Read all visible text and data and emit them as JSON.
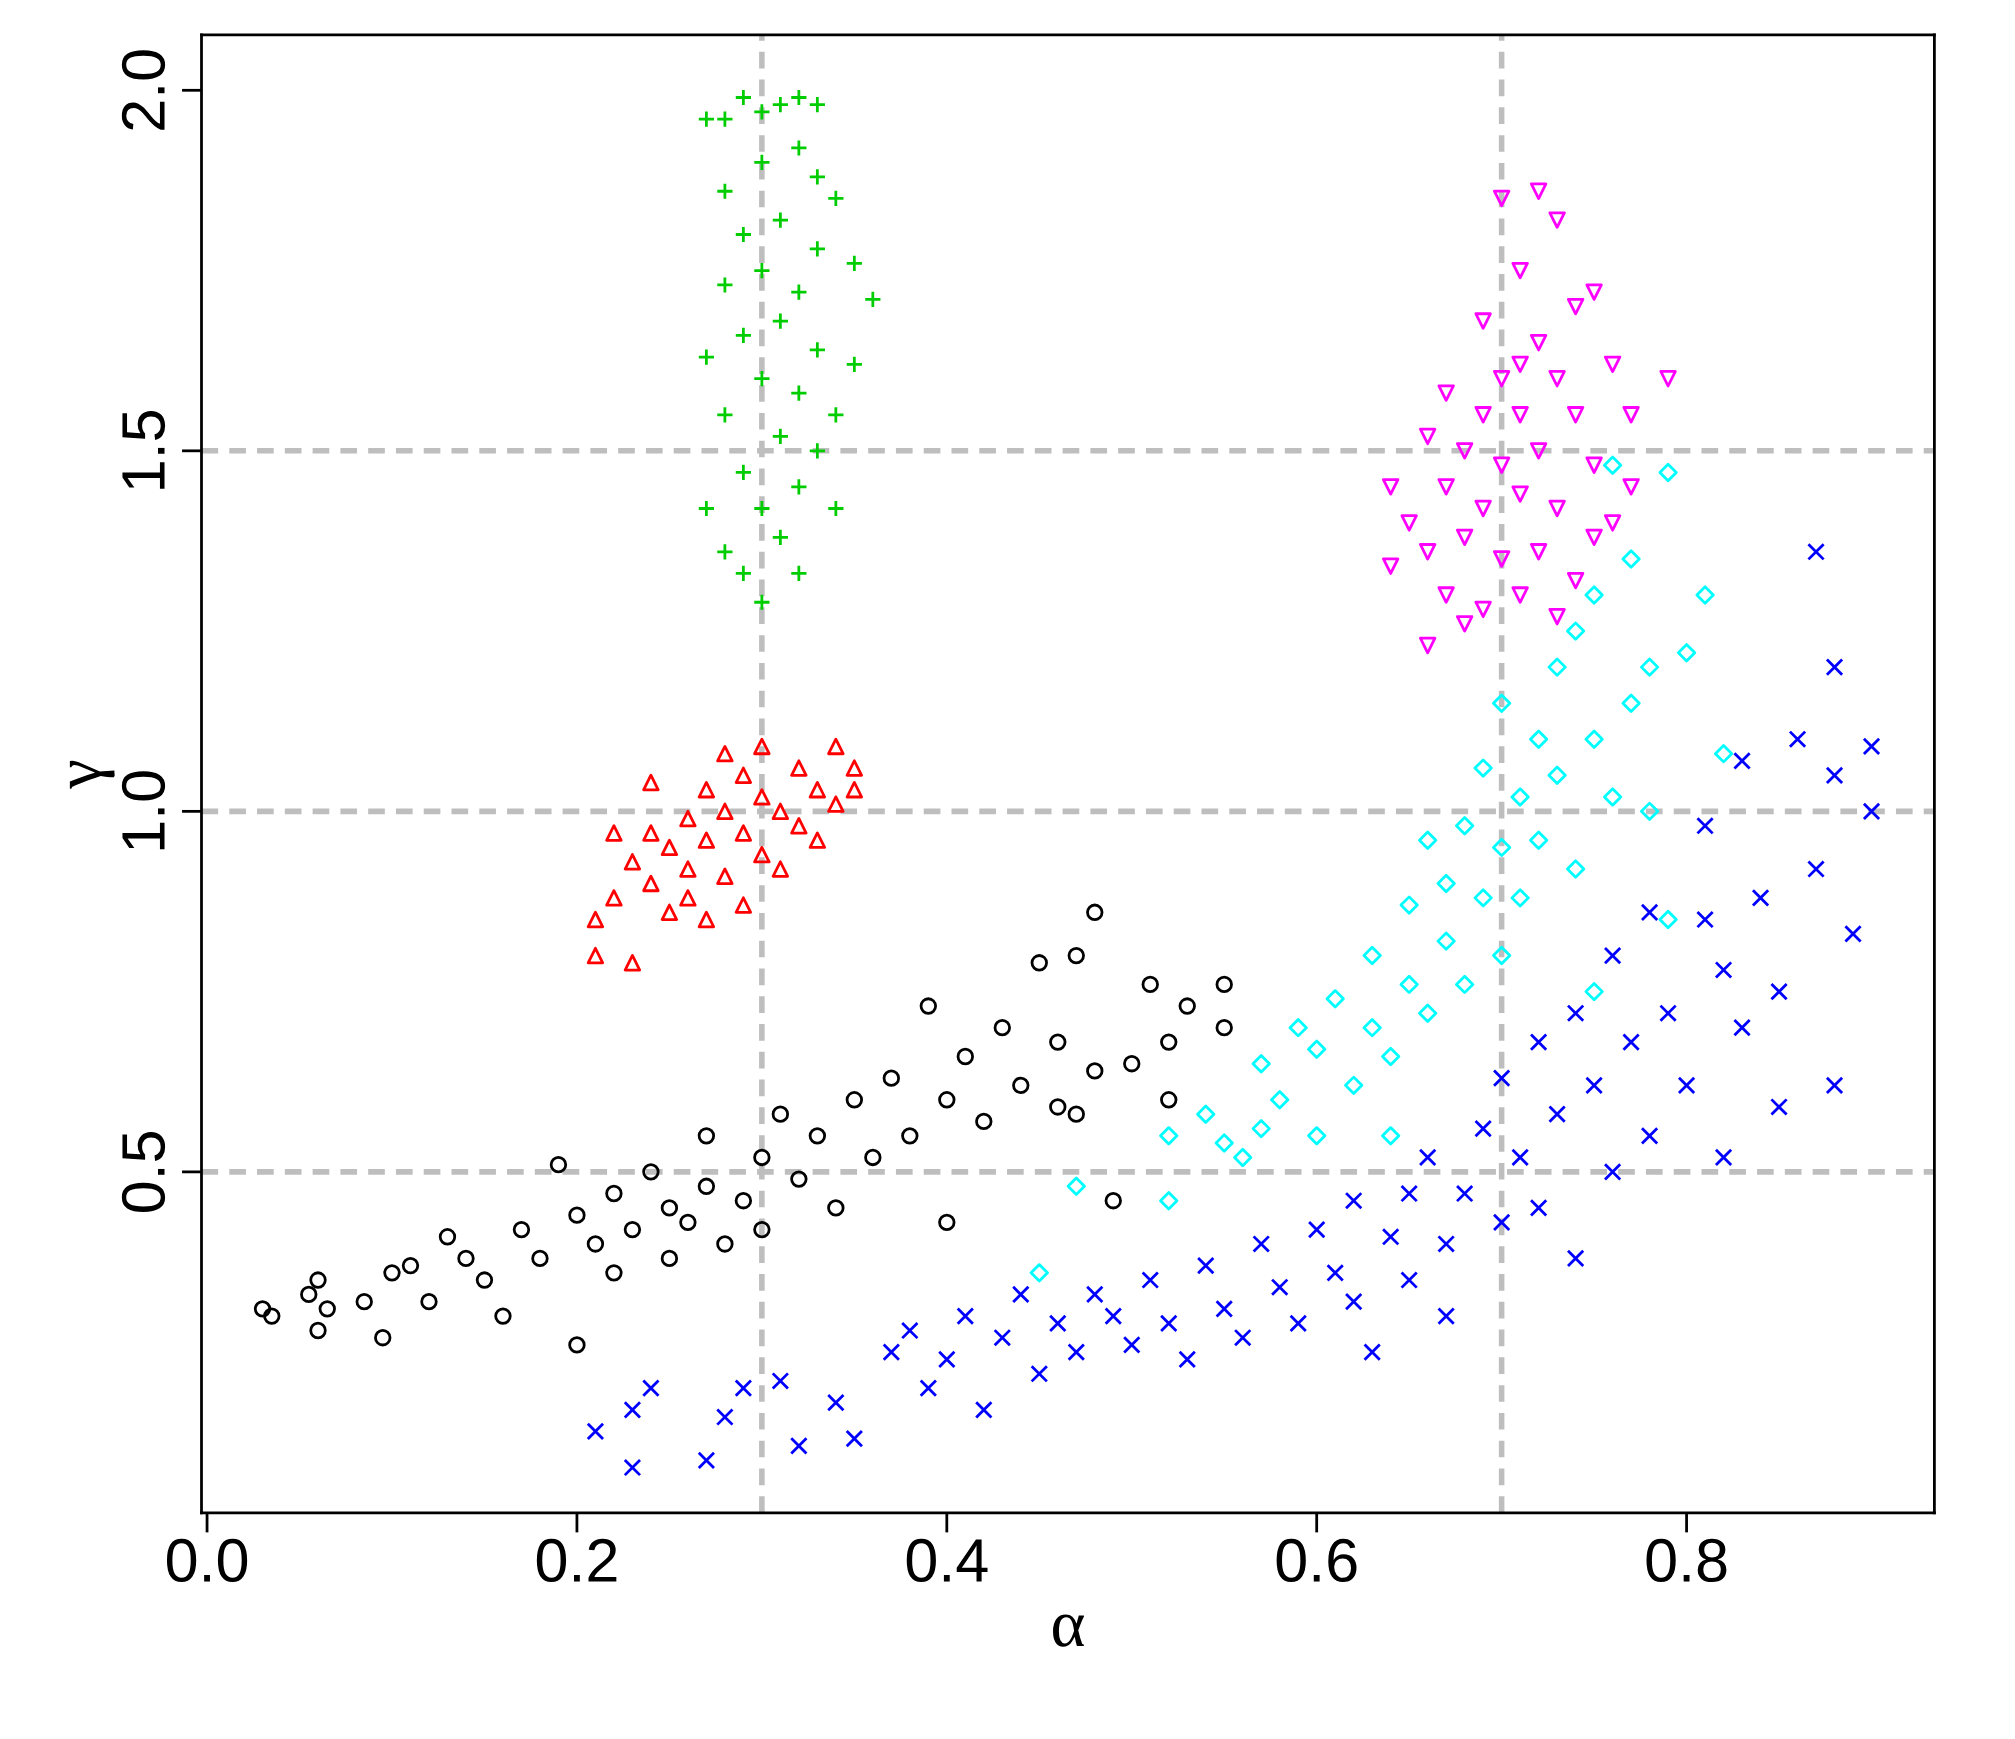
{
  "chart_data": {
    "type": "scatter",
    "xlabel": "α",
    "ylabel": "γ",
    "xlim": [
      -0.003,
      0.934
    ],
    "ylim": [
      0.027,
      2.077
    ],
    "xticks": [
      {
        "value": 0,
        "label": "0.0"
      },
      0.2,
      0.4,
      0.6,
      0.8
    ],
    "yticks": [
      0.5,
      {
        "value": 1,
        "label": "1.0"
      },
      1.5,
      {
        "value": 2,
        "label": "2.0"
      }
    ],
    "ref_lines": [
      {
        "axis": "x",
        "value": 0.3,
        "color": "#bebebe",
        "line_style": "dashed"
      },
      {
        "axis": "x",
        "value": 0.7,
        "color": "#bebebe",
        "line_style": "dashed"
      },
      {
        "axis": "y",
        "value": 0.5,
        "color": "#bebebe",
        "line_style": "dashed"
      },
      {
        "axis": "y",
        "value": 1.0,
        "color": "#bebebe",
        "line_style": "dashed"
      },
      {
        "axis": "y",
        "value": 1.5,
        "color": "#bebebe",
        "line_style": "dashed"
      }
    ],
    "series": [
      {
        "color": "#000000",
        "marker": "circle",
        "x": [
          0.03,
          0.035,
          0.055,
          0.06,
          0.06,
          0.065,
          0.085,
          0.095,
          0.1,
          0.11,
          0.12,
          0.13,
          0.14,
          0.15,
          0.16,
          0.17,
          0.18,
          0.19,
          0.2,
          0.21,
          0.22,
          0.22,
          0.23,
          0.24,
          0.25,
          0.25,
          0.26,
          0.27,
          0.27,
          0.28,
          0.29,
          0.3,
          0.3,
          0.31,
          0.32,
          0.33,
          0.34,
          0.35,
          0.36,
          0.37,
          0.38,
          0.39,
          0.4,
          0.41,
          0.42,
          0.43,
          0.44,
          0.45,
          0.46,
          0.46,
          0.47,
          0.48,
          0.48,
          0.49,
          0.5,
          0.51,
          0.52,
          0.52,
          0.53,
          0.55,
          0.55,
          0.4,
          0.47,
          0.2
        ],
        "values": [
          0.31,
          0.3,
          0.33,
          0.35,
          0.28,
          0.31,
          0.32,
          0.27,
          0.36,
          0.37,
          0.32,
          0.41,
          0.38,
          0.35,
          0.3,
          0.42,
          0.38,
          0.51,
          0.44,
          0.4,
          0.47,
          0.36,
          0.42,
          0.5,
          0.45,
          0.38,
          0.43,
          0.55,
          0.48,
          0.4,
          0.46,
          0.52,
          0.42,
          0.58,
          0.49,
          0.55,
          0.45,
          0.6,
          0.52,
          0.63,
          0.55,
          0.73,
          0.6,
          0.66,
          0.57,
          0.7,
          0.62,
          0.79,
          0.68,
          0.59,
          0.8,
          0.86,
          0.64,
          0.46,
          0.65,
          0.76,
          0.6,
          0.68,
          0.73,
          0.76,
          0.7,
          0.43,
          0.58,
          0.26
        ]
      },
      {
        "color": "#ff0000",
        "marker": "triangle",
        "x": [
          0.21,
          0.21,
          0.22,
          0.23,
          0.23,
          0.22,
          0.24,
          0.24,
          0.25,
          0.25,
          0.26,
          0.26,
          0.27,
          0.27,
          0.27,
          0.28,
          0.28,
          0.28,
          0.29,
          0.29,
          0.3,
          0.3,
          0.3,
          0.31,
          0.31,
          0.32,
          0.32,
          0.33,
          0.33,
          0.34,
          0.34,
          0.35,
          0.35,
          0.26,
          0.24,
          0.29
        ],
        "values": [
          0.85,
          0.8,
          0.88,
          0.79,
          0.93,
          0.97,
          1.04,
          0.9,
          0.95,
          0.86,
          0.99,
          0.92,
          1.03,
          0.96,
          0.85,
          1.08,
          1.0,
          0.91,
          0.97,
          0.87,
          1.09,
          1.02,
          0.94,
          1.0,
          0.92,
          1.06,
          0.98,
          1.03,
          0.96,
          1.09,
          1.01,
          1.06,
          1.03,
          0.88,
          0.97,
          1.05
        ]
      },
      {
        "color": "#00cd00",
        "marker": "cross",
        "x": [
          0.28,
          0.29,
          0.3,
          0.31,
          0.32,
          0.33,
          0.3,
          0.32,
          0.28,
          0.33,
          0.34,
          0.29,
          0.31,
          0.33,
          0.28,
          0.3,
          0.32,
          0.35,
          0.36,
          0.29,
          0.31,
          0.33,
          0.27,
          0.3,
          0.32,
          0.28,
          0.31,
          0.33,
          0.29,
          0.32,
          0.3,
          0.27,
          0.34,
          0.31,
          0.28,
          0.29,
          0.3,
          0.32,
          0.27,
          0.34,
          0.35
        ],
        "values": [
          1.96,
          1.99,
          1.97,
          1.98,
          1.99,
          1.98,
          1.9,
          1.92,
          1.86,
          1.88,
          1.85,
          1.8,
          1.82,
          1.78,
          1.73,
          1.75,
          1.72,
          1.76,
          1.71,
          1.66,
          1.68,
          1.64,
          1.63,
          1.6,
          1.58,
          1.55,
          1.52,
          1.5,
          1.47,
          1.45,
          1.42,
          1.42,
          1.42,
          1.38,
          1.36,
          1.33,
          1.29,
          1.33,
          1.96,
          1.55,
          1.62
        ]
      },
      {
        "color": "#ff00ff",
        "marker": "triangle_down",
        "x": [
          0.7,
          0.72,
          0.73,
          0.71,
          0.74,
          0.69,
          0.72,
          0.75,
          0.7,
          0.73,
          0.76,
          0.79,
          0.67,
          0.69,
          0.71,
          0.74,
          0.77,
          0.66,
          0.68,
          0.7,
          0.72,
          0.75,
          0.64,
          0.67,
          0.69,
          0.71,
          0.73,
          0.76,
          0.65,
          0.66,
          0.68,
          0.7,
          0.72,
          0.74,
          0.64,
          0.67,
          0.69,
          0.71,
          0.73,
          0.66,
          0.68,
          0.75,
          0.77,
          0.71
        ],
        "values": [
          1.85,
          1.86,
          1.82,
          1.75,
          1.7,
          1.68,
          1.65,
          1.72,
          1.6,
          1.6,
          1.62,
          1.6,
          1.58,
          1.55,
          1.55,
          1.55,
          1.55,
          1.52,
          1.5,
          1.48,
          1.5,
          1.48,
          1.45,
          1.45,
          1.42,
          1.44,
          1.42,
          1.4,
          1.4,
          1.36,
          1.38,
          1.35,
          1.36,
          1.32,
          1.34,
          1.3,
          1.28,
          1.3,
          1.27,
          1.23,
          1.26,
          1.38,
          1.45,
          1.62
        ]
      },
      {
        "color": "#00ffff",
        "marker": "diamond",
        "x": [
          0.45,
          0.47,
          0.52,
          0.52,
          0.54,
          0.55,
          0.56,
          0.57,
          0.57,
          0.58,
          0.59,
          0.6,
          0.6,
          0.61,
          0.62,
          0.63,
          0.63,
          0.64,
          0.65,
          0.65,
          0.66,
          0.66,
          0.67,
          0.67,
          0.68,
          0.68,
          0.69,
          0.69,
          0.7,
          0.7,
          0.7,
          0.71,
          0.71,
          0.72,
          0.72,
          0.73,
          0.73,
          0.74,
          0.74,
          0.75,
          0.75,
          0.76,
          0.76,
          0.77,
          0.77,
          0.78,
          0.78,
          0.79,
          0.79,
          0.8,
          0.81,
          0.82,
          0.75,
          0.64
        ],
        "values": [
          0.36,
          0.48,
          0.46,
          0.55,
          0.58,
          0.54,
          0.52,
          0.56,
          0.65,
          0.6,
          0.7,
          0.55,
          0.67,
          0.74,
          0.62,
          0.7,
          0.8,
          0.66,
          0.76,
          0.87,
          0.72,
          0.96,
          0.82,
          0.9,
          0.76,
          0.98,
          0.88,
          1.06,
          0.8,
          0.95,
          1.15,
          1.02,
          0.88,
          1.1,
          0.96,
          1.2,
          1.05,
          0.92,
          1.25,
          1.1,
          1.3,
          1.02,
          1.48,
          1.15,
          1.35,
          1.2,
          1.0,
          0.85,
          1.47,
          1.22,
          1.3,
          1.08,
          0.75,
          0.55
        ]
      },
      {
        "color": "#0000ff",
        "marker": "x",
        "x": [
          0.21,
          0.23,
          0.23,
          0.24,
          0.27,
          0.28,
          0.29,
          0.31,
          0.32,
          0.34,
          0.35,
          0.37,
          0.38,
          0.39,
          0.4,
          0.41,
          0.42,
          0.43,
          0.44,
          0.45,
          0.46,
          0.47,
          0.48,
          0.49,
          0.5,
          0.51,
          0.52,
          0.53,
          0.54,
          0.55,
          0.56,
          0.57,
          0.58,
          0.59,
          0.6,
          0.61,
          0.62,
          0.62,
          0.63,
          0.64,
          0.65,
          0.65,
          0.66,
          0.67,
          0.67,
          0.68,
          0.69,
          0.7,
          0.7,
          0.71,
          0.72,
          0.72,
          0.73,
          0.74,
          0.74,
          0.75,
          0.76,
          0.76,
          0.77,
          0.78,
          0.78,
          0.79,
          0.8,
          0.81,
          0.81,
          0.82,
          0.82,
          0.83,
          0.83,
          0.84,
          0.85,
          0.85,
          0.86,
          0.87,
          0.87,
          0.88,
          0.88,
          0.88,
          0.89,
          0.9,
          0.9
        ],
        "values": [
          0.14,
          0.09,
          0.17,
          0.2,
          0.1,
          0.16,
          0.2,
          0.21,
          0.12,
          0.18,
          0.13,
          0.25,
          0.28,
          0.2,
          0.24,
          0.3,
          0.17,
          0.27,
          0.33,
          0.22,
          0.29,
          0.25,
          0.33,
          0.3,
          0.26,
          0.35,
          0.29,
          0.24,
          0.37,
          0.31,
          0.27,
          0.4,
          0.34,
          0.29,
          0.42,
          0.36,
          0.32,
          0.46,
          0.25,
          0.41,
          0.47,
          0.35,
          0.52,
          0.4,
          0.3,
          0.47,
          0.56,
          0.43,
          0.63,
          0.52,
          0.68,
          0.45,
          0.58,
          0.38,
          0.72,
          0.62,
          0.5,
          0.8,
          0.68,
          0.55,
          0.86,
          0.72,
          0.62,
          0.85,
          0.98,
          0.78,
          0.52,
          1.07,
          0.7,
          0.88,
          0.75,
          0.59,
          1.1,
          0.92,
          1.36,
          1.2,
          0.62,
          1.05,
          0.83,
          1.09,
          1.0
        ]
      }
    ]
  }
}
